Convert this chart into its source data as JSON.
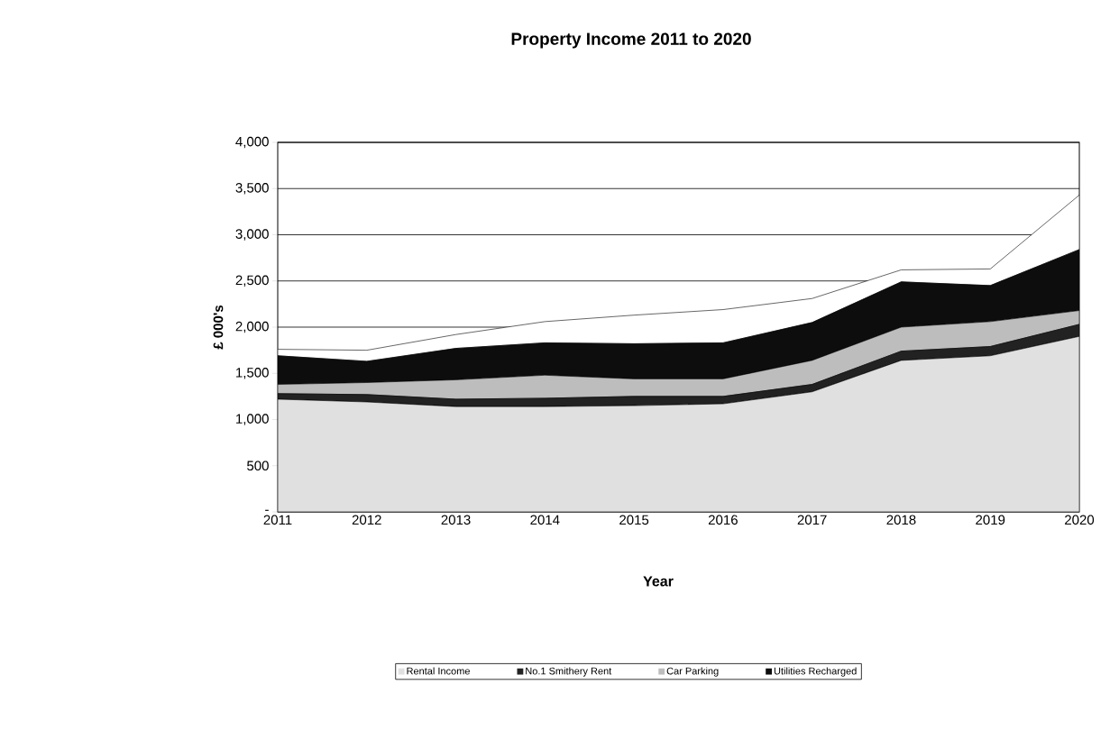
{
  "chart_data": {
    "type": "area",
    "title": "Property Income 2011 to 2020",
    "xlabel": "Year",
    "ylabel": "£ 000's",
    "categories": [
      "2011",
      "2012",
      "2013",
      "2014",
      "2015",
      "2016",
      "2017",
      "2018",
      "2019",
      "2020"
    ],
    "stacked": true,
    "series": [
      {
        "name": "Rental Income",
        "color": "#e0e0e0",
        "values": [
          1220,
          1190,
          1140,
          1140,
          1150,
          1170,
          1300,
          1640,
          1690,
          1900
        ]
      },
      {
        "name": "No.1 Smithery Rent",
        "color": "#222222",
        "values": [
          60,
          80,
          80,
          90,
          100,
          80,
          80,
          100,
          100,
          130
        ]
      },
      {
        "name": "Car Parking",
        "color": "#bdbdbd",
        "values": [
          100,
          130,
          210,
          250,
          190,
          190,
          260,
          260,
          270,
          150
        ]
      },
      {
        "name": "Utilities Recharged",
        "color": "#0d0d0d",
        "values": [
          310,
          230,
          340,
          350,
          380,
          390,
          410,
          490,
          390,
          660
        ]
      },
      {
        "color": "#ffffff",
        "values": [
          70,
          120,
          150,
          230,
          310,
          360,
          260,
          130,
          180,
          590
        ]
      }
    ],
    "ylim": [
      0,
      4000
    ],
    "yticks": [
      {
        "value": 0,
        "label": "-"
      },
      {
        "value": 500,
        "label": "500"
      },
      {
        "value": 1000,
        "label": "1,000"
      },
      {
        "value": 1500,
        "label": "1,500"
      },
      {
        "value": 2000,
        "label": "2,000"
      },
      {
        "value": 2500,
        "label": "2,500"
      },
      {
        "value": 3000,
        "label": "3,000"
      },
      {
        "value": 3500,
        "label": "3,500"
      },
      {
        "value": 4000,
        "label": "4,000"
      }
    ],
    "grid": "y",
    "legend": "bottom"
  }
}
